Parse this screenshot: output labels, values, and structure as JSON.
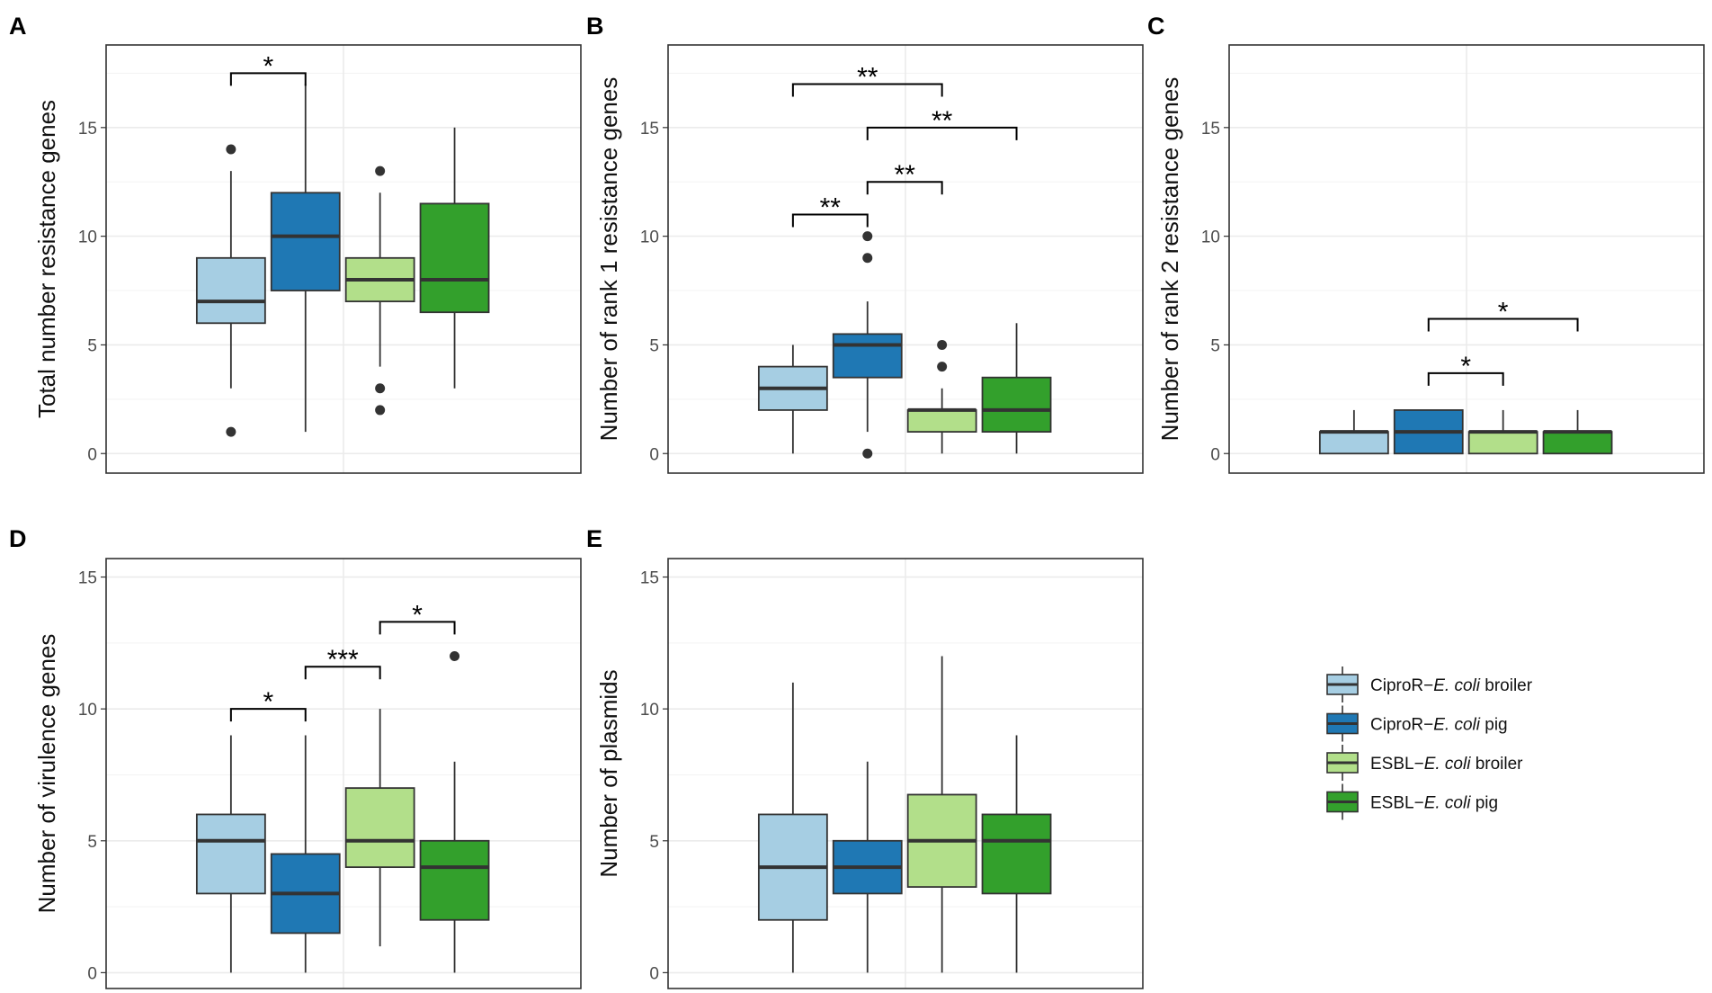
{
  "chart_data": [
    {
      "panel": "A",
      "type": "boxplot",
      "ylabel": "Total number resistance genes",
      "ylim": [
        -0.9,
        18.8
      ],
      "yticks": [
        0,
        5,
        10,
        15
      ],
      "groups": [
        {
          "series": "CiproR-E. coli broiler",
          "min": 3,
          "q1": 6,
          "median": 7,
          "q3": 9,
          "max": 13,
          "outliers": [
            1,
            14
          ]
        },
        {
          "series": "CiproR-E. coli pig",
          "min": 1,
          "q1": 7.5,
          "median": 10,
          "q3": 12,
          "max": 17,
          "outliers": []
        },
        {
          "series": "ESBL-E. coli broiler",
          "min": 4,
          "q1": 7,
          "median": 8,
          "q3": 9,
          "max": 12,
          "outliers": [
            2,
            3,
            13
          ]
        },
        {
          "series": "ESBL-E. coli pig",
          "min": 3,
          "q1": 6.5,
          "median": 8,
          "q3": 11.5,
          "max": 15,
          "outliers": []
        }
      ],
      "significance": [
        {
          "from": 0,
          "to": 1,
          "label": "*",
          "y": 17.5
        }
      ]
    },
    {
      "panel": "B",
      "type": "boxplot",
      "ylabel": "Number of rank 1 resistance genes",
      "ylim": [
        -0.9,
        18.8
      ],
      "yticks": [
        0,
        5,
        10,
        15
      ],
      "groups": [
        {
          "series": "CiproR-E. coli broiler",
          "min": 0,
          "q1": 2,
          "median": 3,
          "q3": 4,
          "max": 5,
          "outliers": []
        },
        {
          "series": "CiproR-E. coli pig",
          "min": 1,
          "q1": 3.5,
          "median": 5,
          "q3": 5.5,
          "max": 7,
          "outliers": [
            0,
            9,
            10
          ]
        },
        {
          "series": "ESBL-E. coli broiler",
          "min": 0,
          "q1": 1,
          "median": 2,
          "q3": 2,
          "max": 3,
          "outliers": [
            4,
            5
          ]
        },
        {
          "series": "ESBL-E. coli pig",
          "min": 0,
          "q1": 1,
          "median": 2,
          "q3": 3.5,
          "max": 6,
          "outliers": []
        }
      ],
      "significance": [
        {
          "from": 0,
          "to": 2,
          "label": "**",
          "y": 17.0
        },
        {
          "from": 1,
          "to": 3,
          "label": "**",
          "y": 15.0
        },
        {
          "from": 1,
          "to": 2,
          "label": "**",
          "y": 12.5
        },
        {
          "from": 0,
          "to": 1,
          "label": "**",
          "y": 11.0
        }
      ]
    },
    {
      "panel": "C",
      "type": "boxplot",
      "ylabel": "Number of rank 2 resistance genes",
      "ylim": [
        -0.9,
        18.8
      ],
      "yticks": [
        0,
        5,
        10,
        15
      ],
      "groups": [
        {
          "series": "CiproR-E. coli broiler",
          "min": 0,
          "q1": 0,
          "median": 1,
          "q3": 1,
          "max": 2,
          "outliers": []
        },
        {
          "series": "CiproR-E. coli pig",
          "min": 0,
          "q1": 0,
          "median": 1,
          "q3": 2,
          "max": 2,
          "outliers": []
        },
        {
          "series": "ESBL-E. coli broiler",
          "min": 0,
          "q1": 0,
          "median": 1,
          "q3": 1,
          "max": 2,
          "outliers": []
        },
        {
          "series": "ESBL-E. coli pig",
          "min": 0,
          "q1": 0,
          "median": 1,
          "q3": 1,
          "max": 2,
          "outliers": []
        }
      ],
      "significance": [
        {
          "from": 1,
          "to": 3,
          "label": "*",
          "y": 6.2
        },
        {
          "from": 1,
          "to": 2,
          "label": "*",
          "y": 3.7
        }
      ]
    },
    {
      "panel": "D",
      "type": "boxplot",
      "ylabel": "Number of virulence genes",
      "ylim": [
        -0.6,
        15.7
      ],
      "yticks": [
        0,
        5,
        10,
        15
      ],
      "groups": [
        {
          "series": "CiproR-E. coli broiler",
          "min": 0,
          "q1": 3,
          "median": 5,
          "q3": 6,
          "max": 9,
          "outliers": []
        },
        {
          "series": "CiproR-E. coli pig",
          "min": 0,
          "q1": 1.5,
          "median": 3,
          "q3": 4.5,
          "max": 9,
          "outliers": []
        },
        {
          "series": "ESBL-E. coli broiler",
          "min": 1,
          "q1": 4,
          "median": 5,
          "q3": 7,
          "max": 10,
          "outliers": []
        },
        {
          "series": "ESBL-E. coli pig",
          "min": 0,
          "q1": 2,
          "median": 4,
          "q3": 5,
          "max": 8,
          "outliers": [
            12
          ]
        }
      ],
      "significance": [
        {
          "from": 2,
          "to": 3,
          "label": "*",
          "y": 13.3
        },
        {
          "from": 1,
          "to": 2,
          "label": "***",
          "y": 11.6
        },
        {
          "from": 0,
          "to": 1,
          "label": "*",
          "y": 10.0
        }
      ]
    },
    {
      "panel": "E",
      "type": "boxplot",
      "ylabel": "Number of plasmids",
      "ylim": [
        -0.6,
        15.7
      ],
      "yticks": [
        0,
        5,
        10,
        15
      ],
      "groups": [
        {
          "series": "CiproR-E. coli broiler",
          "min": 0,
          "q1": 2,
          "median": 4,
          "q3": 6,
          "max": 11,
          "outliers": []
        },
        {
          "series": "CiproR-E. coli pig",
          "min": 0,
          "q1": 3,
          "median": 4,
          "q3": 5,
          "max": 8,
          "outliers": []
        },
        {
          "series": "ESBL-E. coli broiler",
          "min": 0,
          "q1": 3.25,
          "median": 5,
          "q3": 6.75,
          "max": 12,
          "outliers": []
        },
        {
          "series": "ESBL-E. coli pig",
          "min": 0,
          "q1": 3,
          "median": 5,
          "q3": 6,
          "max": 9,
          "outliers": []
        }
      ],
      "significance": []
    }
  ],
  "legend": {
    "items": [
      {
        "series": "CiproR-E. coli broiler",
        "prefix": "CiproR−",
        "italic": "E. coli",
        "suffix": " broiler",
        "color": "#a6cee3"
      },
      {
        "series": "CiproR-E. coli pig",
        "prefix": "CiproR−",
        "italic": "E. coli",
        "suffix": " pig",
        "color": "#1f78b4"
      },
      {
        "series": "ESBL-E. coli broiler",
        "prefix": "ESBL−",
        "italic": "E. coli",
        "suffix": " broiler",
        "color": "#b2df8a"
      },
      {
        "series": "ESBL-E. coli pig",
        "prefix": "ESBL−",
        "italic": "E. coli",
        "suffix": " pig",
        "color": "#33a02c"
      }
    ]
  },
  "colors": {
    "box_stroke": "#333333",
    "grid": "#ebebeb",
    "panel_border": "#333333",
    "tick_text": "#4d4d4d"
  }
}
